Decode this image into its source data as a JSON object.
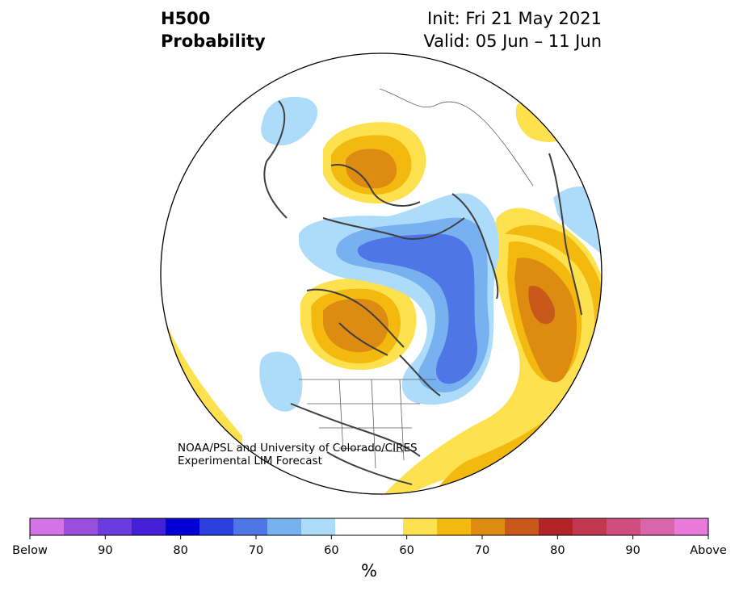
{
  "title": {
    "left_line1": "H500",
    "left_line2": "Probability",
    "right_line1": "Init: Fri 21 May 2021",
    "right_line2": "Valid: 05 Jun – 11 Jun"
  },
  "credit": {
    "line1": "NOAA/PSL and University of Colorado/CIRES",
    "line2": "Experimental LIM Forecast"
  },
  "map": {
    "projection": "north-polar-stereographic",
    "circle_stroke": "#000000",
    "coast_color": "#404040",
    "anomalies": [
      {
        "region": "northern Europe / Scandinavia",
        "sign": "above",
        "peak_pct": 70
      },
      {
        "region": "Arctic Ocean north of Canada",
        "sign": "below",
        "peak_pct": 70
      },
      {
        "region": "central Canada / Hudson Bay",
        "sign": "above",
        "peak_pct": 70
      },
      {
        "region": "North Pacific / Gulf of Alaska",
        "sign": "above",
        "peak_pct": 75
      },
      {
        "region": "eastern Pacific",
        "sign": "below",
        "peak_pct": 60
      },
      {
        "region": "Greenland Sea",
        "sign": "below",
        "peak_pct": 60
      }
    ]
  },
  "colorbar": {
    "colors": [
      "#d473e8",
      "#9a4fdc",
      "#6a3bdf",
      "#4320d6",
      "#0000d4",
      "#2a3fdd",
      "#4e76e5",
      "#77b1f0",
      "#acdcf9",
      "#ffffff",
      "#ffffff",
      "#fee14e",
      "#f3b90e",
      "#de8b12",
      "#c9581b",
      "#b12326",
      "#c0374f",
      "#cf4e7e",
      "#d966ac",
      "#e87adb"
    ],
    "labels": [
      "Below",
      "90",
      "80",
      "70",
      "60",
      "60",
      "70",
      "80",
      "90",
      "Above"
    ],
    "unit": "%"
  }
}
